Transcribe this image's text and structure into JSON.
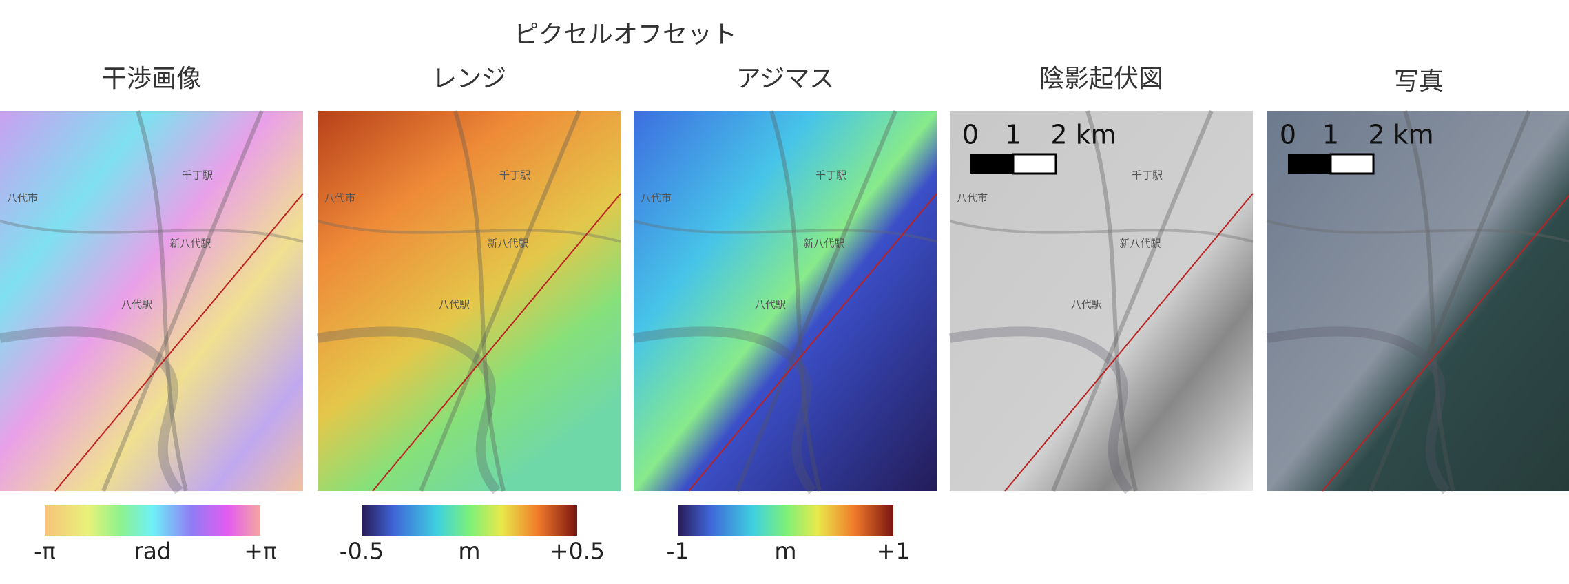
{
  "supertitle": "ピクセルオフセット",
  "map_labels": [
    "八代市",
    "千丁駅",
    "新八代駅",
    "八代駅"
  ],
  "panels": [
    {
      "title": "干渉画像",
      "colorbar": {
        "min_label": "-π",
        "unit": "rad",
        "max_label": "+π"
      }
    },
    {
      "title": "レンジ",
      "colorbar": {
        "min_label": "-0.5",
        "unit": "m",
        "max_label": "+0.5"
      }
    },
    {
      "title": "アジマス",
      "colorbar": {
        "min_label": "-1",
        "unit": "m",
        "max_label": "+1"
      }
    },
    {
      "title": "陰影起伏図",
      "scalebar": [
        "0",
        "1",
        "2 km"
      ]
    },
    {
      "title": "写真",
      "scalebar": [
        "0",
        "1",
        "2 km"
      ]
    }
  ]
}
